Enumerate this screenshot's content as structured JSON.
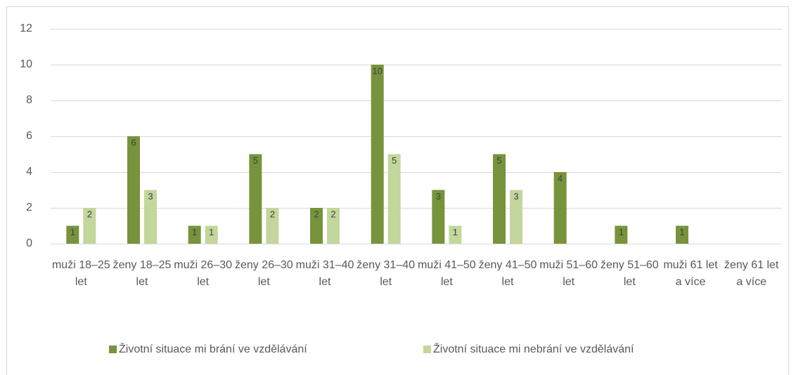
{
  "chart_data": {
    "type": "bar",
    "categories": [
      "muži 18–25 let",
      "ženy 18–25 let",
      "muži 26–30 let",
      "ženy 26–30 let",
      "muži 31–40 let",
      "ženy 31–40 let",
      "muži 41–50 let",
      "ženy 41–50 let",
      "muži 51–60 let",
      "ženy 51–60 let",
      "muži 61 let a více",
      "ženy 61 let a více"
    ],
    "series": [
      {
        "name": "Životní situace mi brání ve vzdělávání",
        "color": "#77933c",
        "values": [
          1,
          6,
          1,
          5,
          2,
          10,
          3,
          5,
          4,
          1,
          1,
          null
        ]
      },
      {
        "name": "Životní situace mi nebrání ve vzdělávání",
        "color": "#c3d69b",
        "values": [
          2,
          3,
          1,
          2,
          2,
          5,
          1,
          3,
          null,
          null,
          null,
          null
        ]
      }
    ],
    "ylim": [
      0,
      12
    ],
    "yticks": [
      0,
      2,
      4,
      6,
      8,
      10,
      12
    ],
    "grid": true,
    "legend": "bottom"
  }
}
